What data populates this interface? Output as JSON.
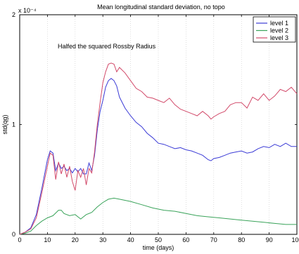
{
  "chart_data": {
    "type": "line",
    "title": "Mean longitudinal standard deviation, no topo",
    "xlabel": "time (days)",
    "ylabel": "std(qg)",
    "y_exponent_label": "x 10⁻⁴",
    "annotation": "Halfed the squared Rossby Radius",
    "xlim": [
      0,
      100
    ],
    "ylim": [
      0,
      2
    ],
    "xticks": [
      "0",
      "10",
      "20",
      "30",
      "40",
      "50",
      "60",
      "70",
      "80",
      "90",
      "100"
    ],
    "yticks": [
      "0",
      "1",
      "2"
    ],
    "grid": "vertical",
    "legend_position": "top-right",
    "series": [
      {
        "name": "level 1",
        "color": "#3b3bd6",
        "x": [
          0,
          2,
          4,
          6,
          8,
          10,
          11,
          12,
          13,
          14,
          15,
          16,
          17,
          18,
          19,
          20,
          21,
          22,
          23,
          24,
          25,
          26,
          27,
          28,
          29,
          30,
          31,
          32,
          33,
          34,
          35,
          36,
          38,
          40,
          42,
          44,
          46,
          48,
          50,
          52,
          54,
          56,
          58,
          60,
          62,
          64,
          66,
          68,
          69,
          70,
          72,
          74,
          76,
          78,
          80,
          82,
          84,
          86,
          88,
          90,
          92,
          94,
          96,
          98,
          100
        ],
        "values": [
          0.0,
          0.02,
          0.06,
          0.18,
          0.42,
          0.68,
          0.76,
          0.74,
          0.58,
          0.65,
          0.6,
          0.62,
          0.58,
          0.6,
          0.56,
          0.6,
          0.57,
          0.6,
          0.55,
          0.55,
          0.65,
          0.58,
          0.72,
          0.95,
          1.12,
          1.22,
          1.34,
          1.4,
          1.42,
          1.4,
          1.35,
          1.25,
          1.15,
          1.08,
          1.02,
          0.98,
          0.92,
          0.88,
          0.83,
          0.82,
          0.8,
          0.78,
          0.79,
          0.77,
          0.76,
          0.74,
          0.72,
          0.68,
          0.67,
          0.69,
          0.7,
          0.72,
          0.74,
          0.75,
          0.76,
          0.74,
          0.75,
          0.78,
          0.8,
          0.79,
          0.82,
          0.8,
          0.83,
          0.8,
          0.8
        ]
      },
      {
        "name": "level 2",
        "color": "#3aa35a",
        "x": [
          0,
          2,
          4,
          6,
          8,
          10,
          12,
          14,
          15,
          16,
          18,
          20,
          22,
          24,
          26,
          28,
          30,
          32,
          34,
          36,
          38,
          40,
          44,
          48,
          52,
          56,
          60,
          64,
          68,
          72,
          76,
          80,
          84,
          88,
          92,
          96,
          100
        ],
        "values": [
          0.0,
          0.01,
          0.03,
          0.08,
          0.12,
          0.15,
          0.17,
          0.22,
          0.22,
          0.19,
          0.17,
          0.18,
          0.14,
          0.18,
          0.2,
          0.25,
          0.29,
          0.32,
          0.33,
          0.32,
          0.31,
          0.3,
          0.27,
          0.24,
          0.22,
          0.21,
          0.19,
          0.17,
          0.16,
          0.15,
          0.14,
          0.13,
          0.12,
          0.11,
          0.1,
          0.09,
          0.09
        ]
      },
      {
        "name": "level 3",
        "color": "#d24a6a",
        "x": [
          0,
          2,
          4,
          6,
          8,
          10,
          11,
          12,
          13,
          14,
          15,
          16,
          17,
          18,
          19,
          20,
          21,
          22,
          23,
          24,
          25,
          26,
          27,
          28,
          29,
          30,
          31,
          32,
          33,
          34,
          35,
          36,
          38,
          40,
          42,
          44,
          46,
          48,
          50,
          52,
          54,
          56,
          58,
          60,
          62,
          64,
          66,
          68,
          69,
          70,
          72,
          74,
          76,
          78,
          80,
          82,
          84,
          86,
          88,
          90,
          92,
          94,
          96,
          98,
          100
        ],
        "values": [
          0.0,
          0.02,
          0.05,
          0.15,
          0.38,
          0.62,
          0.74,
          0.72,
          0.5,
          0.66,
          0.55,
          0.64,
          0.52,
          0.62,
          0.48,
          0.4,
          0.58,
          0.52,
          0.6,
          0.45,
          0.6,
          0.56,
          0.75,
          1.0,
          1.2,
          1.38,
          1.48,
          1.55,
          1.56,
          1.55,
          1.48,
          1.52,
          1.47,
          1.4,
          1.33,
          1.3,
          1.25,
          1.24,
          1.22,
          1.2,
          1.24,
          1.18,
          1.14,
          1.12,
          1.1,
          1.08,
          1.12,
          1.08,
          1.05,
          1.07,
          1.1,
          1.12,
          1.18,
          1.2,
          1.2,
          1.15,
          1.25,
          1.22,
          1.28,
          1.22,
          1.26,
          1.32,
          1.3,
          1.34,
          1.28
        ]
      }
    ]
  }
}
